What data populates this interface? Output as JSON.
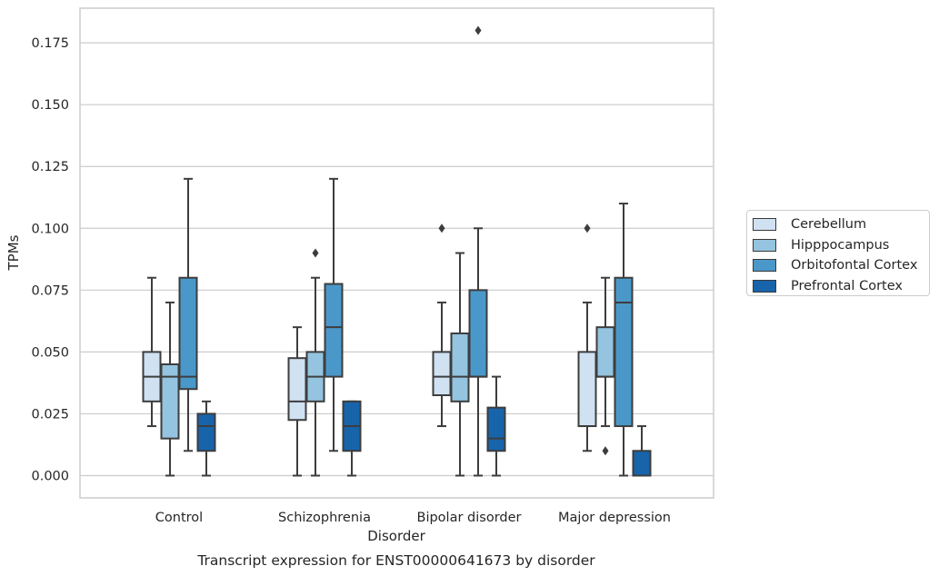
{
  "chart_data": {
    "type": "box",
    "title": "",
    "caption": "Transcript expression for ENST00000641673 by disorder",
    "xlabel": "Disorder",
    "ylabel": "TPMs",
    "ylim": [
      -0.009,
      0.189
    ],
    "yticks": [
      0.0,
      0.025,
      0.05,
      0.075,
      0.1,
      0.125,
      0.15,
      0.175
    ],
    "ytick_labels": [
      "0.000",
      "0.025",
      "0.050",
      "0.075",
      "0.100",
      "0.125",
      "0.150",
      "0.175"
    ],
    "grid": true,
    "legend_position": "right",
    "categories": [
      "Control",
      "Schizophrenia",
      "Bipolar disorder",
      "Major depression"
    ],
    "series": [
      {
        "name": "Cerebellum",
        "color": "#d0e1f2",
        "boxes": [
          {
            "whisker_low": 0.02,
            "q1": 0.03,
            "median": 0.04,
            "q3": 0.05,
            "whisker_high": 0.08,
            "outliers": []
          },
          {
            "whisker_low": 0.0,
            "q1": 0.0225,
            "median": 0.03,
            "q3": 0.0475,
            "whisker_high": 0.06,
            "outliers": []
          },
          {
            "whisker_low": 0.02,
            "q1": 0.0325,
            "median": 0.04,
            "q3": 0.05,
            "whisker_high": 0.07,
            "outliers": [
              0.1
            ]
          },
          {
            "whisker_low": 0.01,
            "q1": 0.02,
            "median": 0.02,
            "q3": 0.05,
            "whisker_high": 0.07,
            "outliers": [
              0.1
            ]
          }
        ]
      },
      {
        "name": "Hipppocampus",
        "color": "#94c4df",
        "boxes": [
          {
            "whisker_low": 0.0,
            "q1": 0.015,
            "median": 0.04,
            "q3": 0.045,
            "whisker_high": 0.07,
            "outliers": []
          },
          {
            "whisker_low": 0.0,
            "q1": 0.03,
            "median": 0.04,
            "q3": 0.05,
            "whisker_high": 0.08,
            "outliers": [
              0.09
            ]
          },
          {
            "whisker_low": 0.0,
            "q1": 0.03,
            "median": 0.04,
            "q3": 0.0575,
            "whisker_high": 0.09,
            "outliers": []
          },
          {
            "whisker_low": 0.02,
            "q1": 0.04,
            "median": 0.04,
            "q3": 0.06,
            "whisker_high": 0.08,
            "outliers": [
              0.01
            ]
          }
        ]
      },
      {
        "name": "Orbitofontal Cortex",
        "color": "#4a98c9",
        "boxes": [
          {
            "whisker_low": 0.01,
            "q1": 0.035,
            "median": 0.04,
            "q3": 0.08,
            "whisker_high": 0.12,
            "outliers": []
          },
          {
            "whisker_low": 0.01,
            "q1": 0.04,
            "median": 0.06,
            "q3": 0.0775,
            "whisker_high": 0.12,
            "outliers": []
          },
          {
            "whisker_low": 0.0,
            "q1": 0.04,
            "median": 0.04,
            "q3": 0.075,
            "whisker_high": 0.1,
            "outliers": [
              0.18
            ]
          },
          {
            "whisker_low": 0.0,
            "q1": 0.02,
            "median": 0.07,
            "q3": 0.08,
            "whisker_high": 0.11,
            "outliers": []
          }
        ]
      },
      {
        "name": "Prefrontal Cortex",
        "color": "#1764ab",
        "boxes": [
          {
            "whisker_low": 0.0,
            "q1": 0.01,
            "median": 0.02,
            "q3": 0.025,
            "whisker_high": 0.03,
            "outliers": []
          },
          {
            "whisker_low": 0.0,
            "q1": 0.01,
            "median": 0.02,
            "q3": 0.03,
            "whisker_high": 0.03,
            "outliers": []
          },
          {
            "whisker_low": 0.0,
            "q1": 0.01,
            "median": 0.015,
            "q3": 0.0275,
            "whisker_high": 0.04,
            "outliers": []
          },
          {
            "whisker_low": 0.0,
            "q1": 0.0,
            "median": 0.0,
            "q3": 0.01,
            "whisker_high": 0.02,
            "outliers": []
          }
        ]
      }
    ]
  }
}
